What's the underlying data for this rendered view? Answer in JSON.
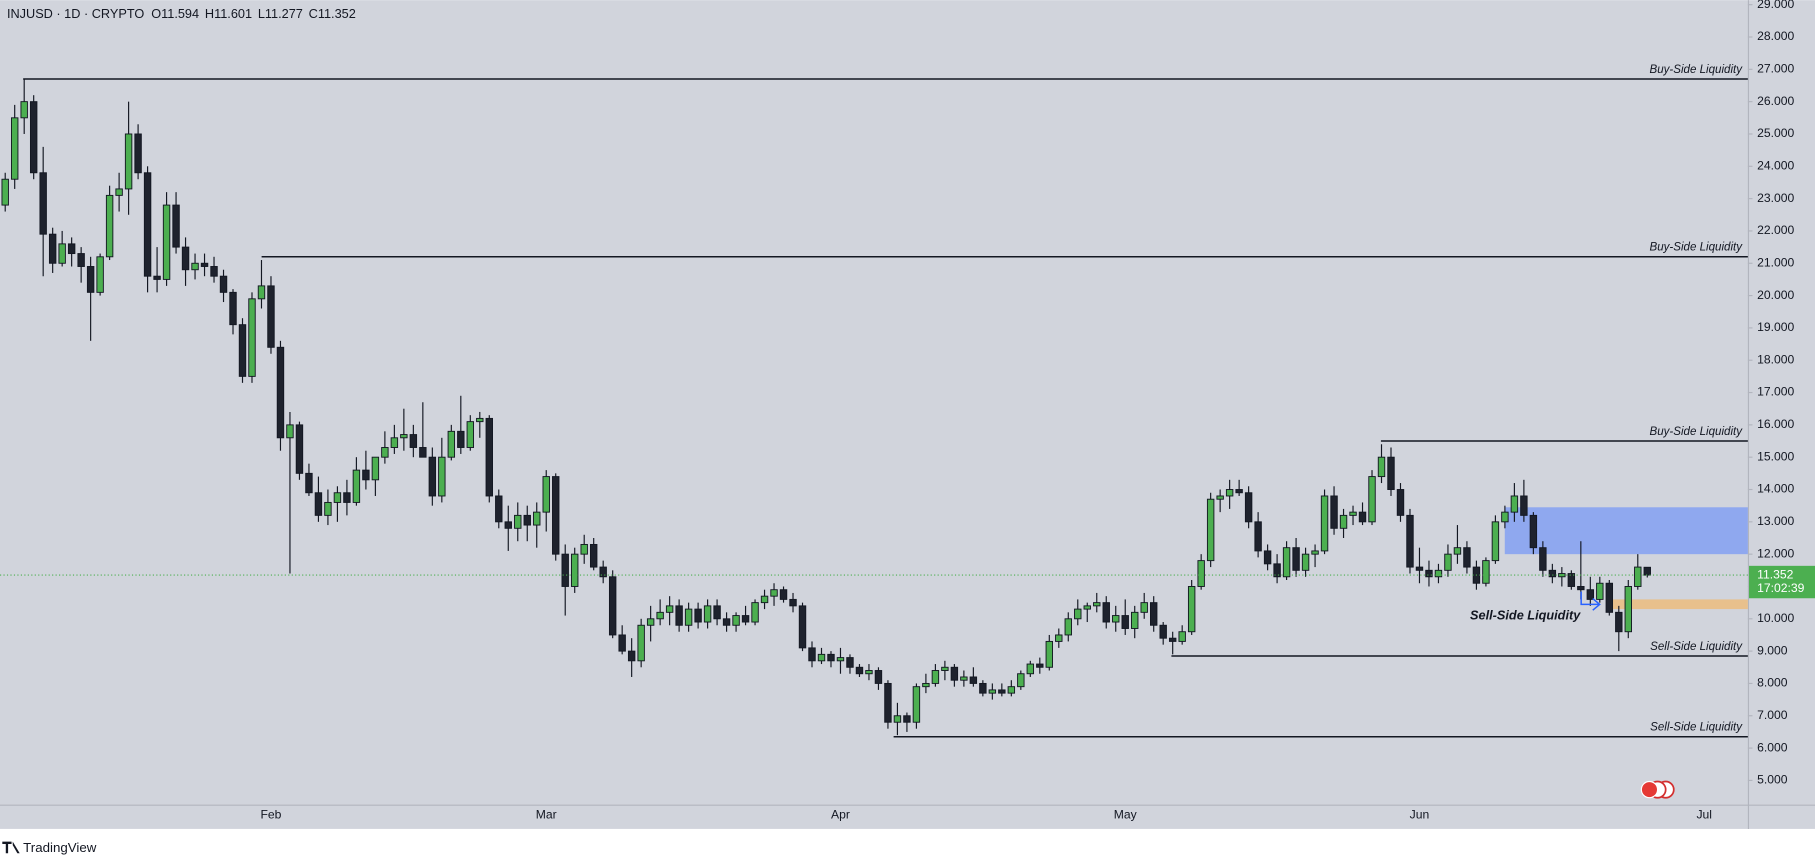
{
  "chart_data": {
    "type": "candlestick",
    "symbol": "INJUSD · 1D · CRYPTO",
    "ohlc_prefixes": [
      "O",
      "H",
      "L",
      "C"
    ],
    "countdown": "17:02:39",
    "brand": "TradingView",
    "up_color": "#4caf50",
    "down_color": "#1e222d",
    "grid": false,
    "categories": [
      null,
      null,
      null,
      null,
      null,
      null,
      null,
      null,
      null,
      null,
      null,
      null,
      null,
      null,
      null,
      null,
      null,
      null,
      null,
      null,
      null,
      null,
      null,
      null,
      null,
      null,
      null,
      null,
      "Feb",
      null,
      null,
      null,
      null,
      null,
      null,
      null,
      null,
      null,
      null,
      null,
      null,
      null,
      null,
      null,
      null,
      null,
      null,
      null,
      null,
      null,
      null,
      null,
      null,
      null,
      null,
      null,
      null,
      "Mar",
      null,
      null,
      null,
      null,
      null,
      null,
      null,
      null,
      null,
      null,
      null,
      null,
      null,
      null,
      null,
      null,
      null,
      null,
      null,
      null,
      null,
      null,
      null,
      null,
      null,
      null,
      null,
      null,
      null,
      null,
      "Apr",
      null,
      null,
      null,
      null,
      null,
      null,
      null,
      null,
      null,
      null,
      null,
      null,
      null,
      null,
      null,
      null,
      null,
      null,
      null,
      null,
      null,
      null,
      null,
      null,
      null,
      null,
      null,
      null,
      null,
      "May",
      null,
      null,
      null,
      null,
      null,
      null,
      null,
      null,
      null,
      null,
      null,
      null,
      null,
      null,
      null,
      null,
      null,
      null,
      null,
      null,
      null,
      null,
      null,
      null,
      null,
      null,
      null,
      null,
      null,
      null,
      "Jun",
      null,
      null,
      null,
      null,
      null,
      null,
      null,
      null,
      null,
      null,
      null,
      null,
      null,
      null,
      null,
      null,
      null,
      null,
      null,
      null,
      null,
      null,
      null,
      null,
      null,
      null,
      null,
      null,
      null,
      "Jul"
    ],
    "open": [
      22.8,
      23.6,
      25.5,
      26.0,
      23.8,
      21.9,
      21.0,
      21.6,
      21.3,
      20.9,
      20.1,
      21.2,
      23.1,
      23.3,
      25.0,
      23.8,
      20.6,
      20.5,
      22.8,
      21.5,
      20.8,
      21.0,
      20.9,
      20.6,
      20.1,
      19.1,
      17.5,
      19.9,
      20.3,
      18.4,
      15.6,
      16.0,
      14.5,
      13.9,
      13.2,
      13.6,
      13.9,
      13.6,
      14.6,
      14.3,
      15.0,
      15.3,
      15.6,
      15.7,
      15.3,
      15.0,
      13.8,
      15.0,
      15.8,
      15.3,
      16.1,
      16.2,
      13.8,
      13.0,
      12.8,
      13.2,
      12.9,
      13.3,
      14.4,
      12.0,
      11.0,
      12.0,
      12.3,
      11.6,
      11.3,
      9.5,
      9.0,
      8.7,
      9.8,
      10.0,
      10.2,
      10.4,
      9.8,
      10.3,
      9.9,
      10.4,
      10.0,
      9.8,
      10.1,
      9.9,
      10.5,
      10.7,
      10.9,
      10.6,
      10.4,
      9.1,
      8.7,
      8.9,
      8.7,
      8.8,
      8.5,
      8.3,
      8.4,
      8.0,
      6.8,
      7.0,
      6.8,
      7.9,
      8.0,
      8.4,
      8.5,
      8.1,
      8.2,
      8.0,
      7.7,
      7.8,
      7.7,
      7.9,
      8.3,
      8.6,
      8.5,
      9.3,
      9.5,
      10.0,
      10.3,
      10.4,
      10.5,
      9.9,
      10.1,
      9.7,
      10.2,
      10.5,
      9.8,
      9.4,
      9.3,
      9.6,
      11.0,
      11.8,
      13.7,
      13.8,
      14.0,
      13.9,
      13.0,
      12.1,
      11.7,
      11.3,
      12.2,
      11.5,
      12.0,
      12.1,
      13.8,
      12.8,
      13.2,
      13.3,
      13.0,
      14.4,
      15.0,
      14.0,
      13.2,
      11.6,
      11.5,
      11.3,
      11.5,
      12.0,
      12.2,
      11.6,
      11.1,
      11.8,
      13.0,
      13.3,
      13.8,
      13.2,
      12.2,
      11.5,
      11.3,
      11.4,
      11.0,
      10.9,
      10.6,
      11.1,
      10.2,
      9.6,
      11.0,
      11.594,
      null,
      null,
      null,
      null,
      null,
      null
    ],
    "high": [
      23.8,
      25.9,
      26.7,
      26.2,
      24.6,
      22.1,
      22.0,
      21.8,
      21.5,
      21.2,
      21.3,
      23.4,
      23.8,
      26.0,
      25.3,
      24.0,
      21.5,
      23.2,
      23.2,
      21.8,
      21.3,
      21.3,
      21.2,
      20.8,
      20.2,
      19.3,
      20.1,
      21.1,
      20.6,
      18.6,
      16.4,
      16.1,
      14.8,
      14.4,
      14.0,
      14.1,
      14.3,
      15.0,
      15.2,
      15.0,
      15.8,
      16.0,
      16.5,
      16.0,
      16.7,
      15.3,
      15.6,
      16.0,
      16.9,
      16.3,
      16.4,
      16.3,
      14.0,
      13.5,
      13.6,
      13.5,
      13.6,
      14.6,
      14.5,
      12.3,
      12.2,
      12.6,
      12.5,
      11.8,
      11.5,
      9.8,
      9.4,
      10.0,
      10.4,
      10.6,
      10.7,
      10.6,
      10.5,
      10.5,
      10.6,
      10.6,
      10.2,
      10.2,
      10.4,
      10.6,
      10.9,
      11.1,
      11.0,
      10.8,
      10.5,
      9.3,
      9.1,
      9.0,
      9.1,
      8.9,
      8.6,
      8.6,
      8.5,
      8.1,
      7.4,
      7.1,
      8.0,
      8.3,
      8.6,
      8.7,
      8.6,
      8.4,
      8.5,
      8.1,
      8.0,
      8.0,
      8.1,
      8.4,
      8.7,
      8.8,
      9.5,
      9.7,
      10.2,
      10.6,
      10.5,
      10.8,
      10.7,
      10.4,
      10.6,
      10.4,
      10.8,
      10.7,
      9.9,
      9.6,
      9.8,
      11.2,
      12.0,
      13.9,
      14.0,
      14.3,
      14.3,
      14.1,
      13.3,
      12.3,
      12.0,
      12.4,
      12.5,
      12.2,
      12.3,
      14.0,
      14.1,
      13.4,
      13.5,
      13.6,
      14.6,
      15.4,
      15.3,
      14.2,
      13.4,
      12.2,
      11.8,
      11.7,
      12.3,
      12.9,
      12.4,
      11.8,
      11.9,
      13.2,
      13.5,
      14.2,
      14.3,
      13.3,
      12.4,
      11.7,
      11.6,
      11.5,
      12.4,
      11.3,
      11.3,
      11.2,
      10.4,
      11.2,
      12.0,
      11.601,
      null,
      null,
      null,
      null,
      null,
      null
    ],
    "low": [
      22.6,
      23.3,
      25.0,
      23.6,
      20.6,
      20.7,
      20.9,
      20.9,
      20.4,
      18.6,
      20.0,
      21.1,
      22.6,
      22.5,
      23.6,
      20.1,
      20.1,
      20.3,
      21.3,
      20.3,
      20.5,
      20.6,
      20.4,
      19.8,
      18.8,
      17.3,
      17.3,
      19.6,
      18.2,
      15.2,
      11.4,
      14.3,
      13.8,
      13.0,
      12.9,
      13.0,
      13.2,
      13.5,
      14.0,
      13.8,
      14.8,
      15.1,
      15.2,
      15.0,
      15.0,
      13.5,
      13.6,
      14.9,
      15.1,
      15.2,
      15.6,
      13.6,
      12.8,
      12.1,
      12.4,
      12.4,
      12.2,
      12.7,
      11.8,
      10.1,
      10.8,
      11.7,
      11.5,
      11.1,
      9.4,
      8.9,
      8.2,
      8.5,
      9.3,
      9.8,
      9.8,
      9.6,
      9.6,
      9.7,
      9.7,
      9.8,
      9.6,
      9.6,
      9.8,
      9.8,
      10.3,
      10.4,
      10.5,
      10.2,
      9.0,
      8.5,
      8.6,
      8.5,
      8.3,
      8.3,
      8.2,
      8.1,
      7.8,
      6.6,
      6.4,
      6.5,
      6.6,
      7.7,
      7.9,
      8.1,
      7.9,
      7.9,
      7.9,
      7.6,
      7.5,
      7.6,
      7.6,
      7.8,
      8.2,
      8.3,
      8.4,
      9.1,
      9.3,
      9.8,
      9.9,
      10.2,
      9.7,
      9.6,
      9.5,
      9.4,
      10.0,
      9.6,
      9.2,
      8.9,
      9.2,
      9.5,
      10.9,
      11.6,
      13.3,
      13.4,
      13.8,
      12.8,
      11.9,
      11.5,
      11.1,
      11.2,
      11.3,
      11.3,
      11.6,
      12.0,
      12.6,
      12.5,
      12.9,
      12.9,
      12.9,
      14.2,
      13.8,
      13.0,
      11.4,
      11.1,
      11.0,
      11.1,
      11.3,
      11.7,
      11.4,
      10.9,
      11.0,
      11.7,
      12.8,
      13.0,
      13.0,
      12.0,
      11.3,
      11.1,
      11.0,
      10.9,
      10.6,
      10.4,
      10.5,
      10.1,
      9.0,
      9.4,
      10.9,
      11.277,
      null,
      null,
      null,
      null,
      null,
      null
    ],
    "close": [
      23.6,
      25.5,
      26.0,
      23.8,
      21.9,
      21.0,
      21.6,
      21.3,
      20.9,
      20.1,
      21.2,
      23.1,
      23.3,
      25.0,
      23.8,
      20.6,
      20.5,
      22.8,
      21.5,
      20.8,
      21.0,
      20.9,
      20.6,
      20.1,
      19.1,
      17.5,
      19.9,
      20.3,
      18.4,
      15.6,
      16.0,
      14.5,
      13.9,
      13.2,
      13.6,
      13.9,
      13.6,
      14.6,
      14.3,
      15.0,
      15.3,
      15.6,
      15.7,
      15.3,
      15.0,
      13.8,
      15.0,
      15.8,
      15.3,
      16.1,
      16.2,
      13.8,
      13.0,
      12.8,
      13.2,
      12.9,
      13.3,
      14.4,
      12.0,
      11.0,
      12.0,
      12.3,
      11.6,
      11.3,
      9.5,
      9.0,
      8.7,
      9.8,
      10.0,
      10.2,
      10.4,
      9.8,
      10.3,
      9.9,
      10.4,
      10.0,
      9.8,
      10.1,
      9.9,
      10.5,
      10.7,
      10.9,
      10.6,
      10.4,
      9.1,
      8.7,
      8.9,
      8.7,
      8.8,
      8.5,
      8.3,
      8.4,
      8.0,
      6.8,
      7.0,
      6.8,
      7.9,
      8.0,
      8.4,
      8.5,
      8.1,
      8.2,
      8.0,
      7.7,
      7.8,
      7.7,
      7.9,
      8.3,
      8.6,
      8.5,
      9.3,
      9.5,
      10.0,
      10.3,
      10.4,
      10.5,
      9.9,
      10.1,
      9.7,
      10.2,
      10.5,
      9.8,
      9.4,
      9.3,
      9.6,
      11.0,
      11.8,
      13.7,
      13.8,
      14.0,
      13.9,
      13.0,
      12.1,
      11.7,
      11.3,
      12.2,
      11.5,
      12.0,
      12.1,
      13.8,
      12.8,
      13.2,
      13.3,
      13.0,
      14.4,
      15.0,
      14.0,
      13.2,
      11.6,
      11.5,
      11.3,
      11.5,
      12.0,
      12.2,
      11.6,
      11.1,
      11.8,
      13.0,
      13.3,
      13.8,
      13.2,
      12.2,
      11.5,
      11.3,
      11.4,
      11.0,
      10.9,
      10.6,
      11.1,
      10.2,
      9.6,
      11.0,
      11.6,
      11.352,
      null,
      null,
      null,
      null,
      null,
      null
    ],
    "ylim": [
      4.25,
      29.14
    ],
    "yticks": [
      {
        "value": 5,
        "label": "5.000"
      },
      {
        "value": 6,
        "label": "6.000"
      },
      {
        "value": 7,
        "label": "7.000"
      },
      {
        "value": 8,
        "label": "8.000"
      },
      {
        "value": 9,
        "label": "9.000"
      },
      {
        "value": 10,
        "label": "10.000"
      },
      {
        "value": 11,
        "label": "11.000"
      },
      {
        "value": 12,
        "label": "12.000"
      },
      {
        "value": 13,
        "label": "13.000"
      },
      {
        "value": 14,
        "label": "14.000"
      },
      {
        "value": 15,
        "label": "15.000"
      },
      {
        "value": 16,
        "label": "16.000"
      },
      {
        "value": 17,
        "label": "17.000"
      },
      {
        "value": 18,
        "label": "18.000"
      },
      {
        "value": 19,
        "label": "19.000"
      },
      {
        "value": 20,
        "label": "20.000"
      },
      {
        "value": 21,
        "label": "21.000"
      },
      {
        "value": 22,
        "label": "22.000"
      },
      {
        "value": 23,
        "label": "23.000"
      },
      {
        "value": 24,
        "label": "24.000"
      },
      {
        "value": 25,
        "label": "25.000"
      },
      {
        "value": 26,
        "label": "26.000"
      },
      {
        "value": 27,
        "label": "27.000"
      },
      {
        "value": 28,
        "label": "28.000"
      },
      {
        "value": 29,
        "label": "29.000"
      }
    ],
    "levels": [
      {
        "label": "Buy-Side Liquidity",
        "value": 26.7
      },
      {
        "label": "Buy-Side Liquidity",
        "value": 21.2
      },
      {
        "label": "Buy-Side Liquidity",
        "value": 15.5
      },
      {
        "label": "Sell-Side Liquidity",
        "value": 8.85
      },
      {
        "label": "Sell-Side Liquidity",
        "value": 6.35
      }
    ],
    "zones": [
      {
        "from": 12.0,
        "to": 13.45,
        "color": "#8fa8ef"
      },
      {
        "from": 10.3,
        "to": 10.6,
        "color": "#e8c08c"
      }
    ],
    "annotation": {
      "text": "Sell-Side Liquidity",
      "color": "#2962ff"
    }
  }
}
